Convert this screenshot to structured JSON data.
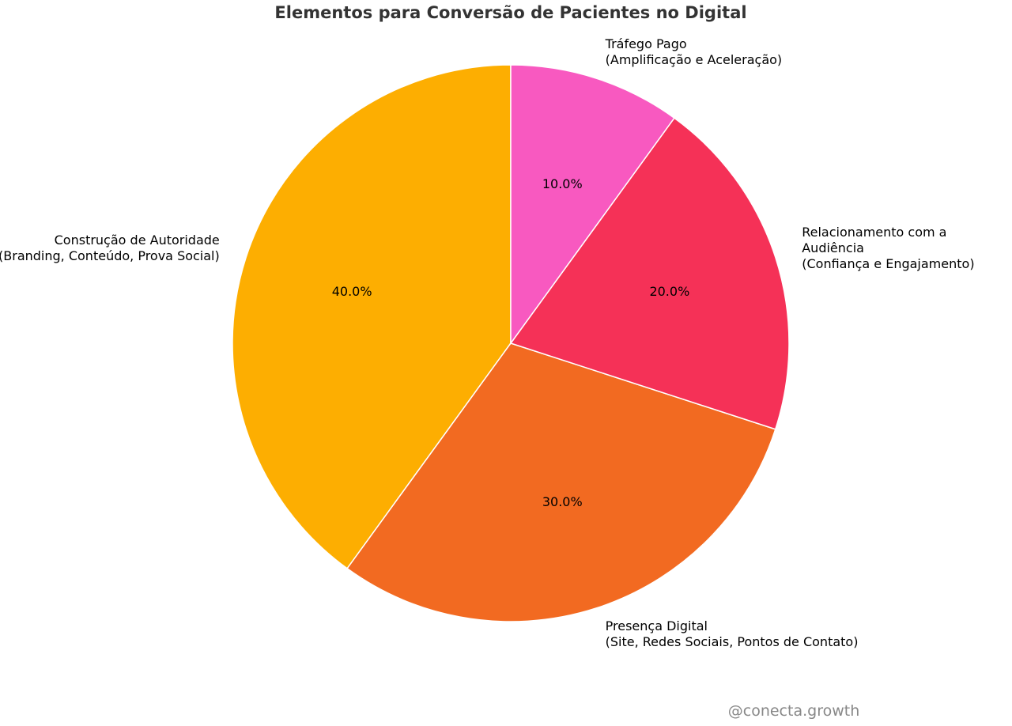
{
  "chart_data": {
    "type": "pie",
    "title": "Elementos para Conversão de Pacientes no Digital",
    "categories": [
      "Construção de Autoridade\n(Branding, Conteúdo, Prova Social)",
      "Presença Digital\n(Site, Redes Sociais, Pontos de Contato)",
      "Relacionamento com a Audiência\n(Confiança e Engajamento)",
      "Tráfego Pago\n(Amplificação e Aceleração)"
    ],
    "values": [
      40,
      30,
      20,
      10
    ],
    "value_labels": [
      "40.0%",
      "30.0%",
      "20.0%",
      "10.0%"
    ],
    "colors": [
      "#fdae01",
      "#f26a21",
      "#f53157",
      "#f859c0"
    ],
    "start_angle": 90,
    "watermark": "@conecta.growth"
  }
}
